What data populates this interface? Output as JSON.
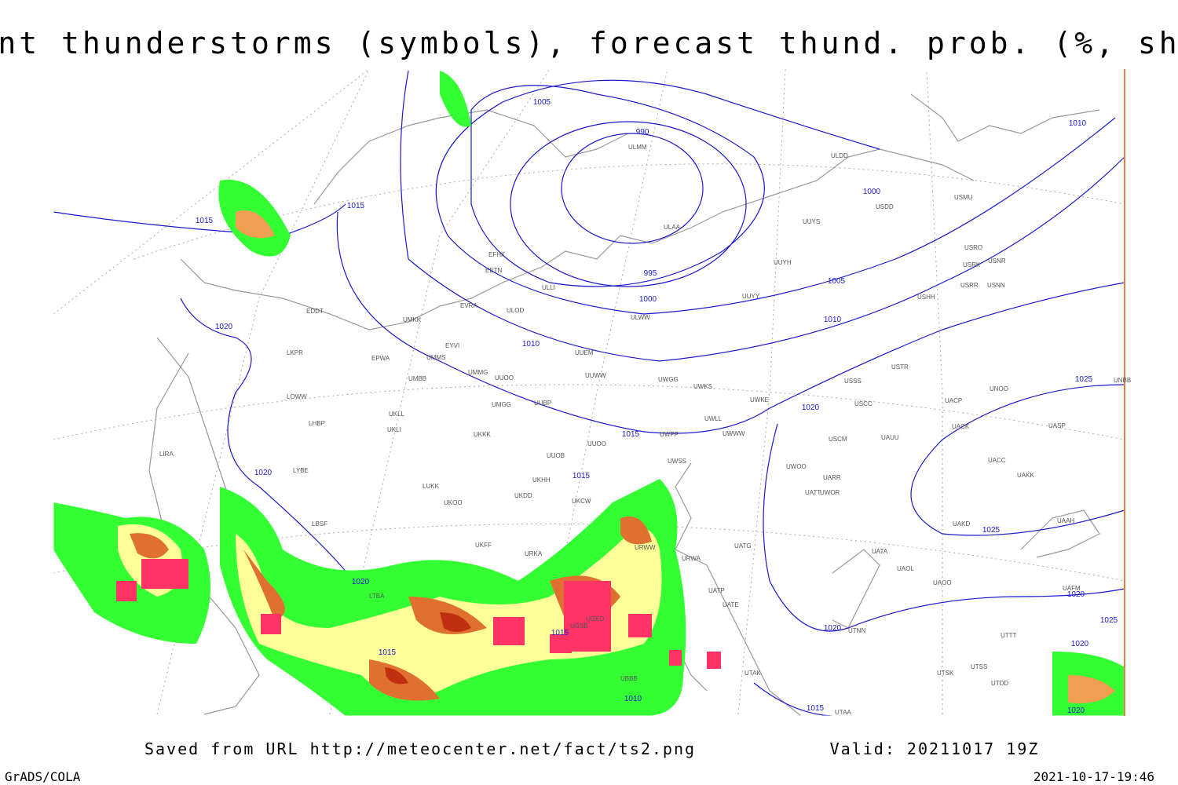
{
  "header": {
    "title": "Current thunderstorms (symbols), forecast thund. prob. (%, shaded)"
  },
  "isobar_labels": [
    "1005",
    "990",
    "1015",
    "1015",
    "1000",
    "1010",
    "995",
    "1000",
    "1005",
    "1010",
    "1010",
    "1020",
    "1015",
    "1020",
    "1025",
    "1020",
    "1015",
    "1025",
    "1020",
    "1015",
    "1020",
    "1015",
    "1010",
    "1015",
    "1020",
    "1025",
    "1020",
    "1020"
  ],
  "stations": [
    "ULMM",
    "ULDD",
    "USDD",
    "USMU",
    "UUYS",
    "ULAA",
    "EFHK",
    "EETN",
    "UUYH",
    "USRO",
    "USRK",
    "USNR",
    "USRR",
    "USNN",
    "UUYY",
    "USHH",
    "ULLI",
    "EVRA",
    "ULOD",
    "ULWW",
    "UMKK",
    "EDDT",
    "EYVI",
    "UUEM",
    "UMMS",
    "EPWA",
    "UMMG",
    "UUWW",
    "UMBB",
    "UUOO",
    "UWGG",
    "UWKS",
    "USSS",
    "USTR",
    "UNBB",
    "LKPR",
    "UNOO",
    "UWKE",
    "USCC",
    "UACP",
    "LOWW",
    "UKLL",
    "UUBP",
    "UMGG",
    "UWLL",
    "UWWW",
    "UKLI",
    "LHBP",
    "UACK",
    "UASP",
    "UKKK",
    "UUOO",
    "UWPP",
    "USCM",
    "UAUU",
    "LIRA",
    "UUOB",
    "LYBE",
    "UWSS",
    "UWOO",
    "UARR",
    "UACC",
    "UAKK",
    "UKHH",
    "UKDD",
    "UWOR",
    "LUKK",
    "UATT",
    "UKOO",
    "UKCW",
    "LBSF",
    "UAKD",
    "UAAH",
    "UKFF",
    "UATG",
    "URWA",
    "UATA",
    "UAOL",
    "UAOO",
    "URKA",
    "URWW",
    "UATE",
    "UATP",
    "UTNN",
    "UGKO",
    "UGSB",
    "UTAK",
    "UTSS",
    "UTSK",
    "UTAA",
    "UTDD",
    "UAFM",
    "UTTT",
    "UBBB",
    "LTBA"
  ],
  "footer": {
    "saved": "Saved from URL http://meteocenter.net/fact/ts2.png",
    "valid": "Valid: 20211017 19Z",
    "software": "GrADS/COLA",
    "timestamp": "2021-10-17-19:46"
  }
}
